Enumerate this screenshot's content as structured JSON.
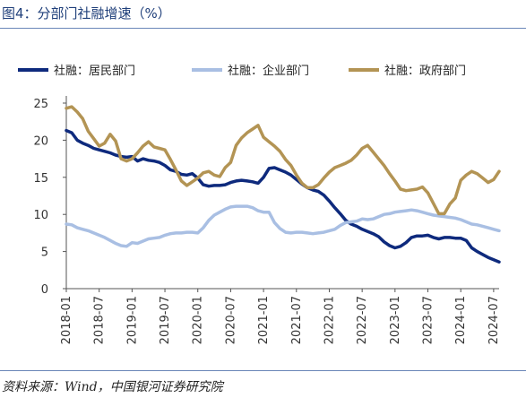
{
  "figure": {
    "title": "图4：分部门社融增速（%）",
    "source": "资料来源：Wind，中国银河证券研究院"
  },
  "chart_data": {
    "type": "line",
    "ylim": [
      0,
      25
    ],
    "yticks": [
      0,
      5,
      10,
      15,
      20,
      25
    ],
    "xticks": [
      "2018-01",
      "2018-07",
      "2019-01",
      "2019-07",
      "2020-01",
      "2020-07",
      "2021-01",
      "2021-07",
      "2022-01",
      "2022-07",
      "2023-01",
      "2023-07",
      "2024-01",
      "2024-07"
    ],
    "grid": false,
    "legend_position": "top",
    "x": [
      "2018-01",
      "2018-02",
      "2018-03",
      "2018-04",
      "2018-05",
      "2018-06",
      "2018-07",
      "2018-08",
      "2018-09",
      "2018-10",
      "2018-11",
      "2018-12",
      "2019-01",
      "2019-02",
      "2019-03",
      "2019-04",
      "2019-05",
      "2019-06",
      "2019-07",
      "2019-08",
      "2019-09",
      "2019-10",
      "2019-11",
      "2019-12",
      "2020-01",
      "2020-02",
      "2020-03",
      "2020-04",
      "2020-05",
      "2020-06",
      "2020-07",
      "2020-08",
      "2020-09",
      "2020-10",
      "2020-11",
      "2020-12",
      "2021-01",
      "2021-02",
      "2021-03",
      "2021-04",
      "2021-05",
      "2021-06",
      "2021-07",
      "2021-08",
      "2021-09",
      "2021-10",
      "2021-11",
      "2021-12",
      "2022-01",
      "2022-02",
      "2022-03",
      "2022-04",
      "2022-05",
      "2022-06",
      "2022-07",
      "2022-08",
      "2022-09",
      "2022-10",
      "2022-11",
      "2022-12",
      "2023-01",
      "2023-02",
      "2023-03",
      "2023-04",
      "2023-05",
      "2023-06",
      "2023-07",
      "2023-08",
      "2023-09",
      "2023-10",
      "2023-11",
      "2023-12",
      "2024-01",
      "2024-02",
      "2024-03",
      "2024-04",
      "2024-05",
      "2024-06",
      "2024-07",
      "2024-08"
    ],
    "series": [
      {
        "name": "社融：居民部门",
        "color": "#0e2a7d",
        "width": 3.5,
        "values": [
          21.3,
          21.0,
          20.0,
          19.6,
          19.3,
          18.9,
          18.7,
          18.5,
          18.3,
          18.0,
          17.8,
          17.7,
          17.8,
          17.2,
          17.5,
          17.3,
          17.2,
          17.0,
          16.6,
          16.0,
          15.8,
          15.4,
          15.3,
          15.5,
          14.9,
          14.0,
          13.8,
          13.9,
          13.9,
          14.0,
          14.3,
          14.5,
          14.6,
          14.5,
          14.4,
          14.2,
          15.0,
          16.2,
          16.3,
          16.0,
          15.7,
          15.3,
          14.7,
          14.1,
          13.6,
          13.3,
          13.1,
          12.6,
          11.8,
          10.9,
          10.1,
          9.2,
          8.7,
          8.4,
          8.0,
          7.7,
          7.4,
          7.0,
          6.3,
          5.8,
          5.5,
          5.7,
          6.2,
          6.9,
          7.1,
          7.1,
          7.2,
          6.9,
          6.7,
          6.9,
          6.9,
          6.8,
          6.8,
          6.5,
          5.5,
          5.0,
          4.6,
          4.2,
          3.9,
          3.6
        ]
      },
      {
        "name": "社融：企业部门",
        "color": "#a9bfe3",
        "width": 3.5,
        "values": [
          8.7,
          8.6,
          8.2,
          8.0,
          7.8,
          7.5,
          7.2,
          6.9,
          6.5,
          6.1,
          5.8,
          5.7,
          6.2,
          6.1,
          6.4,
          6.7,
          6.8,
          6.9,
          7.2,
          7.4,
          7.5,
          7.5,
          7.6,
          7.6,
          7.5,
          8.2,
          9.2,
          9.9,
          10.3,
          10.7,
          11.0,
          11.1,
          11.1,
          11.1,
          10.9,
          10.5,
          10.3,
          10.3,
          8.9,
          8.1,
          7.6,
          7.5,
          7.6,
          7.6,
          7.5,
          7.4,
          7.5,
          7.6,
          7.8,
          8.0,
          8.5,
          8.9,
          9.0,
          9.1,
          9.4,
          9.3,
          9.4,
          9.7,
          10.0,
          10.1,
          10.3,
          10.4,
          10.5,
          10.6,
          10.5,
          10.3,
          10.1,
          9.9,
          9.8,
          9.7,
          9.6,
          9.5,
          9.3,
          9.0,
          8.7,
          8.6,
          8.4,
          8.2,
          8.0,
          7.8
        ]
      },
      {
        "name": "社融：政府部门",
        "color": "#b39454",
        "width": 3.5,
        "values": [
          24.3,
          24.5,
          23.8,
          22.9,
          21.2,
          20.2,
          19.2,
          19.6,
          20.8,
          19.9,
          17.5,
          17.2,
          17.5,
          18.3,
          19.2,
          19.8,
          19.1,
          18.9,
          18.7,
          17.4,
          16.0,
          14.5,
          13.9,
          14.4,
          14.9,
          15.6,
          15.8,
          15.3,
          15.1,
          16.3,
          17.0,
          19.3,
          20.3,
          21.0,
          21.5,
          22.0,
          20.4,
          19.8,
          19.2,
          18.5,
          17.4,
          16.6,
          15.3,
          14.2,
          13.6,
          13.6,
          14.0,
          14.9,
          15.7,
          16.3,
          16.6,
          16.9,
          17.3,
          18.0,
          18.9,
          19.3,
          18.4,
          17.5,
          16.6,
          15.5,
          14.5,
          13.4,
          13.2,
          13.3,
          13.4,
          13.7,
          12.9,
          11.5,
          10.1,
          10.1,
          11.4,
          12.2,
          14.6,
          15.3,
          15.8,
          15.5,
          14.9,
          14.3,
          14.7,
          15.8
        ]
      }
    ]
  }
}
